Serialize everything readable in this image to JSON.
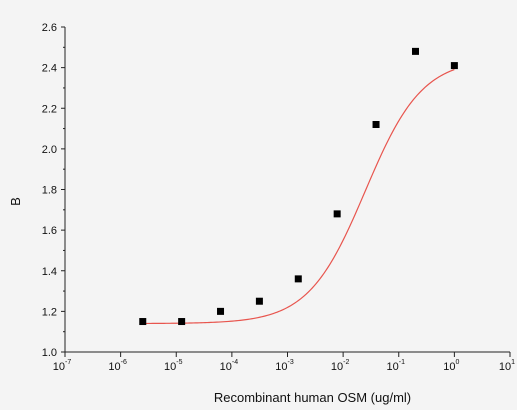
{
  "chart_data": {
    "type": "scatter",
    "xlabel": "Recombinant human OSM (ug/ml)",
    "ylabel": "B",
    "x_scale": "log",
    "xlim": [
      1e-07,
      10
    ],
    "ylim": [
      1.0,
      2.6
    ],
    "x_ticks": [
      {
        "base": "10",
        "exp": "-7"
      },
      {
        "base": "10",
        "exp": "-6"
      },
      {
        "base": "10",
        "exp": "-5"
      },
      {
        "base": "10",
        "exp": "-4"
      },
      {
        "base": "10",
        "exp": "-3"
      },
      {
        "base": "10",
        "exp": "-2"
      },
      {
        "base": "10",
        "exp": "-1"
      },
      {
        "base": "10",
        "exp": "0"
      },
      {
        "base": "10",
        "exp": "1"
      }
    ],
    "y_ticks": [
      "1.0",
      "1.2",
      "1.4",
      "1.6",
      "1.8",
      "2.0",
      "2.2",
      "2.4",
      "2.6"
    ],
    "points": {
      "x": [
        2.5e-06,
        1.25e-05,
        6.25e-05,
        0.0003125,
        0.0015625,
        0.0078125,
        0.0390625,
        0.2,
        1.0
      ],
      "y": [
        1.15,
        1.15,
        1.2,
        1.25,
        1.36,
        1.68,
        2.12,
        2.48,
        2.41
      ]
    },
    "fit": {
      "model": "4PL",
      "bottom": 1.14,
      "top": 2.445,
      "ec50": 0.025,
      "hill": 0.85,
      "color": "#e8554e"
    },
    "marker_color": "#000000",
    "grid": false
  }
}
